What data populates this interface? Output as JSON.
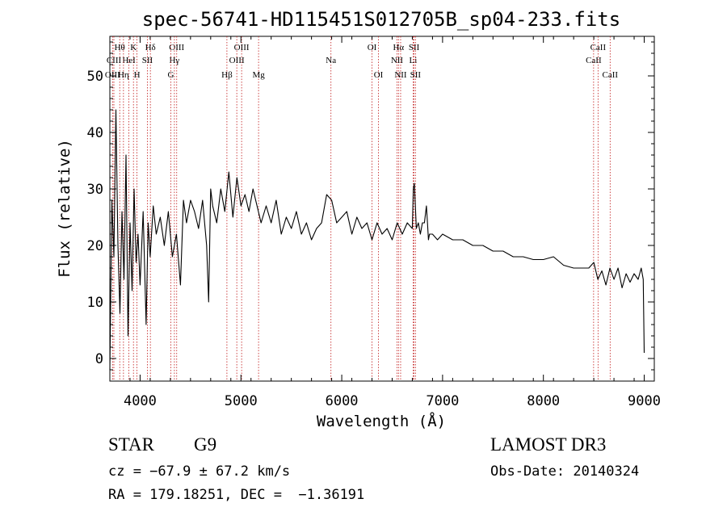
{
  "chart_data": {
    "type": "line",
    "title": "spec-56741-HD115451S012705B_sp04-233.fits",
    "xlabel": "Wavelength (Å)",
    "ylabel": "Flux (relative)",
    "xlim": [
      3700,
      9100
    ],
    "ylim": [
      -4,
      57
    ],
    "xticks": [
      4000,
      5000,
      6000,
      7000,
      8000,
      9000
    ],
    "yticks": [
      0,
      10,
      20,
      30,
      40,
      50
    ],
    "series": [
      {
        "name": "flux",
        "x": [
          3700,
          3720,
          3740,
          3760,
          3780,
          3800,
          3820,
          3840,
          3860,
          3880,
          3900,
          3920,
          3940,
          3960,
          3980,
          4000,
          4030,
          4060,
          4080,
          4100,
          4130,
          4160,
          4200,
          4240,
          4280,
          4320,
          4360,
          4400,
          4430,
          4460,
          4500,
          4540,
          4580,
          4620,
          4660,
          4680,
          4700,
          4720,
          4760,
          4800,
          4840,
          4880,
          4920,
          4960,
          5000,
          5040,
          5080,
          5120,
          5160,
          5200,
          5250,
          5300,
          5350,
          5400,
          5450,
          5500,
          5550,
          5600,
          5650,
          5700,
          5750,
          5800,
          5850,
          5900,
          5950,
          6000,
          6050,
          6100,
          6150,
          6200,
          6250,
          6300,
          6350,
          6400,
          6450,
          6500,
          6550,
          6600,
          6650,
          6700,
          6710,
          6720,
          6730,
          6740,
          6760,
          6780,
          6800,
          6820,
          6840,
          6850,
          6860,
          6870,
          6900,
          6950,
          7000,
          7100,
          7200,
          7300,
          7400,
          7500,
          7600,
          7700,
          7800,
          7900,
          8000,
          8100,
          8200,
          8300,
          8400,
          8450,
          8500,
          8540,
          8580,
          8620,
          8660,
          8700,
          8740,
          8780,
          8820,
          8860,
          8900,
          8940,
          8970,
          8990,
          9000
        ],
        "y": [
          -2,
          28,
          18,
          44,
          20,
          8,
          26,
          14,
          36,
          4,
          24,
          12,
          30,
          17,
          22,
          13,
          26,
          6,
          24,
          18,
          27,
          22,
          25,
          20,
          26,
          18,
          22,
          13,
          28,
          24,
          28,
          26,
          23,
          28,
          20,
          10,
          30,
          27,
          24,
          30,
          26,
          33,
          25,
          32,
          27,
          29,
          26,
          30,
          27,
          24,
          27,
          24,
          28,
          22,
          25,
          23,
          26,
          22,
          24,
          21,
          23,
          24,
          29,
          28,
          24,
          25,
          26,
          22,
          25,
          23,
          24,
          21,
          24,
          22,
          23,
          21,
          24,
          22,
          24,
          23,
          30,
          31,
          27,
          23,
          24,
          22,
          24,
          24,
          27,
          24,
          21,
          22,
          22,
          21,
          22,
          21,
          21,
          20,
          20,
          19,
          19,
          18,
          18,
          17.5,
          17.5,
          18,
          16.5,
          16,
          16,
          16,
          17,
          14,
          15.5,
          13,
          16,
          14,
          16,
          12.5,
          15,
          13.5,
          15,
          14,
          16,
          14,
          1
        ]
      }
    ],
    "line_labels": [
      {
        "label": "Hθ",
        "wl": 3798,
        "row": 1
      },
      {
        "label": "CIII",
        "wl": 3740,
        "row": 2
      },
      {
        "label": "OIII",
        "wl": 3727,
        "row": 3
      },
      {
        "label": "K",
        "wl": 3934,
        "row": 1
      },
      {
        "label": "HeI",
        "wl": 3889,
        "row": 2
      },
      {
        "label": "Hη",
        "wl": 3835,
        "row": 3
      },
      {
        "label": "Hδ",
        "wl": 4102,
        "row": 1
      },
      {
        "label": "SII",
        "wl": 4072,
        "row": 2
      },
      {
        "label": "H",
        "wl": 3969,
        "row": 3
      },
      {
        "label": "OIII",
        "wl": 4363,
        "row": 1
      },
      {
        "label": "Hγ",
        "wl": 4340,
        "row": 2
      },
      {
        "label": "G",
        "wl": 4305,
        "row": 3
      },
      {
        "label": "OIII",
        "wl": 5007,
        "row": 1
      },
      {
        "label": "OIII",
        "wl": 4959,
        "row": 2
      },
      {
        "label": "Hβ",
        "wl": 4861,
        "row": 3
      },
      {
        "label": "Mg",
        "wl": 5175,
        "row": 3
      },
      {
        "label": "Na",
        "wl": 5893,
        "row": 2
      },
      {
        "label": "OI",
        "wl": 6300,
        "row": 1
      },
      {
        "label": "OI",
        "wl": 6364,
        "row": 3
      },
      {
        "label": "Hα",
        "wl": 6563,
        "row": 1
      },
      {
        "label": "NII",
        "wl": 6548,
        "row": 2
      },
      {
        "label": "NII",
        "wl": 6584,
        "row": 3
      },
      {
        "label": "SII",
        "wl": 6717,
        "row": 1
      },
      {
        "label": "Li",
        "wl": 6708,
        "row": 2
      },
      {
        "label": "SII",
        "wl": 6731,
        "row": 3
      },
      {
        "label": "CaII",
        "wl": 8542,
        "row": 1
      },
      {
        "label": "CaII",
        "wl": 8498,
        "row": 2
      },
      {
        "label": "CaII",
        "wl": 8662,
        "row": 3
      }
    ]
  },
  "info": {
    "class": "STAR",
    "subclass": "G9",
    "survey": "LAMOST DR3",
    "cz": "cz = −67.9 ± 67.2 km/s",
    "obs_date": "Obs-Date: 20140324",
    "radec": "RA = 179.18251, DEC =  −1.36191"
  }
}
